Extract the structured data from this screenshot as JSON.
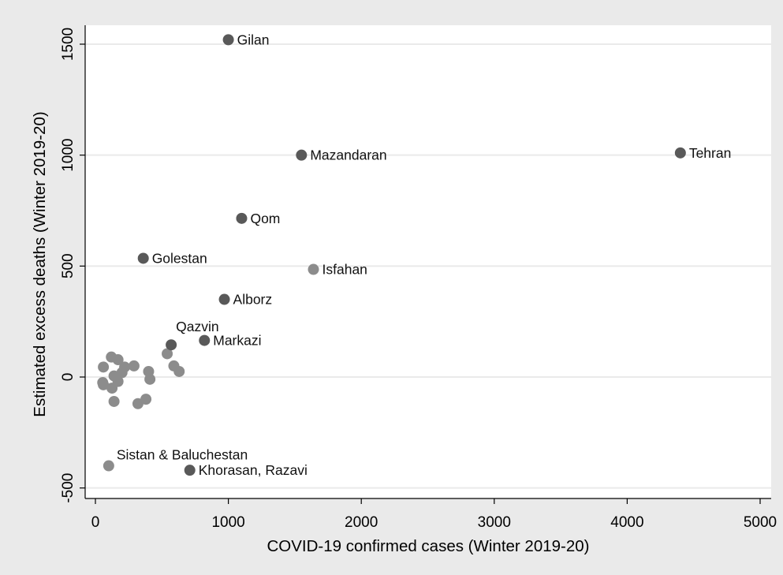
{
  "chart_data": {
    "type": "scatter",
    "title": "",
    "xlabel": "COVID-19 confirmed cases (Winter 2019-20)",
    "ylabel": "Estimated excess deaths (Winter 2019-20)",
    "xlim": [
      0,
      5000
    ],
    "ylim": [
      -500,
      1500
    ],
    "x_ticks": [
      0,
      1000,
      2000,
      3000,
      4000,
      5000
    ],
    "y_ticks": [
      -500,
      0,
      500,
      1000,
      1500
    ],
    "grid": "horizontal",
    "legend": "none",
    "colors": {
      "plot_bg": "#ffffff",
      "outer_bg": "#eaeaea",
      "dark_point": "#595959",
      "light_point": "#8c8c8c",
      "grid": "#eaeaea"
    },
    "labeled_points": [
      {
        "label": "Gilan",
        "x": 1000,
        "y": 1520,
        "shade": "dark"
      },
      {
        "label": "Mazandaran",
        "x": 1550,
        "y": 1000,
        "shade": "dark"
      },
      {
        "label": "Tehran",
        "x": 4400,
        "y": 1010,
        "shade": "dark"
      },
      {
        "label": "Qom",
        "x": 1100,
        "y": 715,
        "shade": "dark"
      },
      {
        "label": "Golestan",
        "x": 360,
        "y": 535,
        "shade": "dark"
      },
      {
        "label": "Isfahan",
        "x": 1640,
        "y": 485,
        "shade": "light"
      },
      {
        "label": "Alborz",
        "x": 970,
        "y": 350,
        "shade": "dark"
      },
      {
        "label": "Qazvin",
        "x": 570,
        "y": 145,
        "shade": "dark"
      },
      {
        "label": "Markazi",
        "x": 820,
        "y": 165,
        "shade": "dark"
      },
      {
        "label": "Sistan & Baluchestan",
        "x": 100,
        "y": -400,
        "shade": "light"
      },
      {
        "label": "Khorasan, Razavi",
        "x": 710,
        "y": -420,
        "shade": "dark"
      }
    ],
    "unlabeled_points": [
      {
        "x": 120,
        "y": 90
      },
      {
        "x": 170,
        "y": 78
      },
      {
        "x": 60,
        "y": 45
      },
      {
        "x": 220,
        "y": 45
      },
      {
        "x": 290,
        "y": 50
      },
      {
        "x": 200,
        "y": 20
      },
      {
        "x": 140,
        "y": 5
      },
      {
        "x": 170,
        "y": -20
      },
      {
        "x": 55,
        "y": -25
      },
      {
        "x": 60,
        "y": -35
      },
      {
        "x": 125,
        "y": -50
      },
      {
        "x": 400,
        "y": 25
      },
      {
        "x": 410,
        "y": -10
      },
      {
        "x": 540,
        "y": 105
      },
      {
        "x": 590,
        "y": 50
      },
      {
        "x": 630,
        "y": 25
      },
      {
        "x": 140,
        "y": -110
      },
      {
        "x": 320,
        "y": -120
      },
      {
        "x": 380,
        "y": -100
      }
    ]
  }
}
